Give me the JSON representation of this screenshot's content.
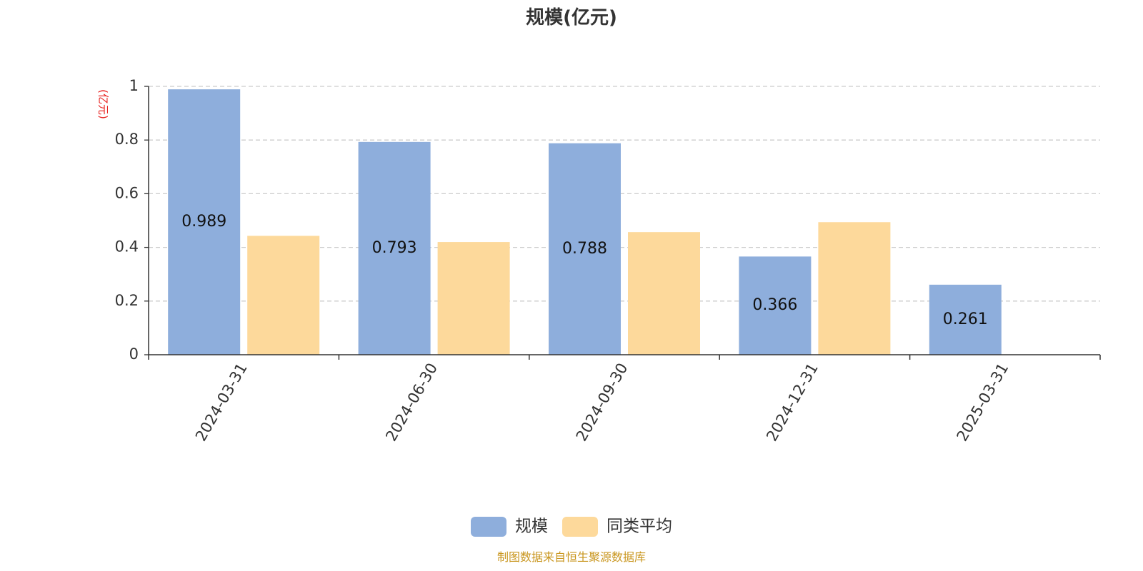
{
  "colors": {
    "series_0": "#8eaedc",
    "series_1": "#fdd99b",
    "unit": "#e8201e",
    "source": "#c9961e",
    "grid": "#cccccc",
    "axis": "#333333"
  },
  "source_note": "制图数据来自恒生聚源数据库",
  "chart_data": {
    "type": "bar",
    "title": "规模(亿元)",
    "ylabel": "(亿元)",
    "xlabel": "",
    "categories": [
      "2024-03-31",
      "2024-06-30",
      "2024-09-30",
      "2024-12-31",
      "2025-03-31"
    ],
    "series": [
      {
        "name": "规模",
        "values": [
          0.989,
          0.793,
          0.788,
          0.366,
          0.261
        ],
        "labels": [
          "0.989",
          "0.793",
          "0.788",
          "0.366",
          "0.261"
        ]
      },
      {
        "name": "同类平均",
        "values": [
          0.443,
          0.42,
          0.457,
          0.494,
          null
        ]
      }
    ],
    "ylim": [
      0,
      1
    ],
    "yticks": [
      0,
      0.2,
      0.4,
      0.6,
      0.8,
      1
    ],
    "ytick_labels": [
      "0",
      "0.2",
      "0.4",
      "0.6",
      "0.8",
      "1"
    ],
    "grid": true,
    "legend_position": "bottom-center"
  }
}
